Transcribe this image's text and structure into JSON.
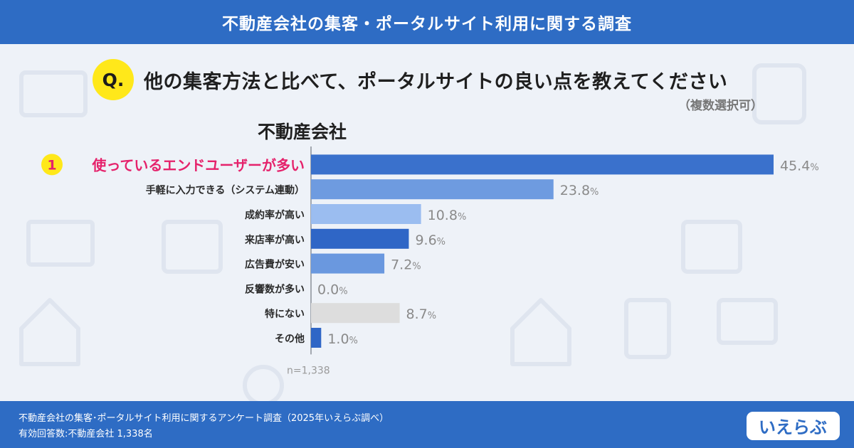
{
  "header": {
    "title": "不動産会社の集客・ポータルサイト利用に関する調査"
  },
  "question": {
    "badge": "Q.",
    "text": "他の集客方法と比べて、ポータルサイトの良い点を教えてください",
    "note": "（複数選択可）"
  },
  "group_title": "不動産会社",
  "chart_data": {
    "type": "bar",
    "orientation": "horizontal",
    "categories": [
      "使っているエンドユーザーが多い",
      "手軽に入力できる（システム連動）",
      "成約率が高い",
      "来店率が高い",
      "広告費が安い",
      "反響数が多い",
      "特にない",
      "その他"
    ],
    "values": [
      45.4,
      23.8,
      10.8,
      9.6,
      7.2,
      0.0,
      8.7,
      1.0
    ],
    "value_labels": [
      "45.4",
      "23.8",
      "10.8",
      "9.6",
      "7.2",
      "0.0",
      "8.7",
      "1.0"
    ],
    "unit": "%",
    "rank_badge": "1",
    "colors": [
      "#3a71cc",
      "#6e9be0",
      "#9bbdf0",
      "#2f66c6",
      "#6a98df",
      "#5a8ad8",
      "#dddddd",
      "#2f66c6"
    ],
    "highlight_color": "#e5226b",
    "xlim": [
      0,
      45.4
    ],
    "sample_size": "n=1,338"
  },
  "footer": {
    "line1": "不動産会社の集客･ポータルサイト利用に関するアンケート調査（2025年いえらぶ調べ）",
    "line2": "有効回答数:不動産会社 1,338名",
    "logo": "いえらぶ"
  }
}
